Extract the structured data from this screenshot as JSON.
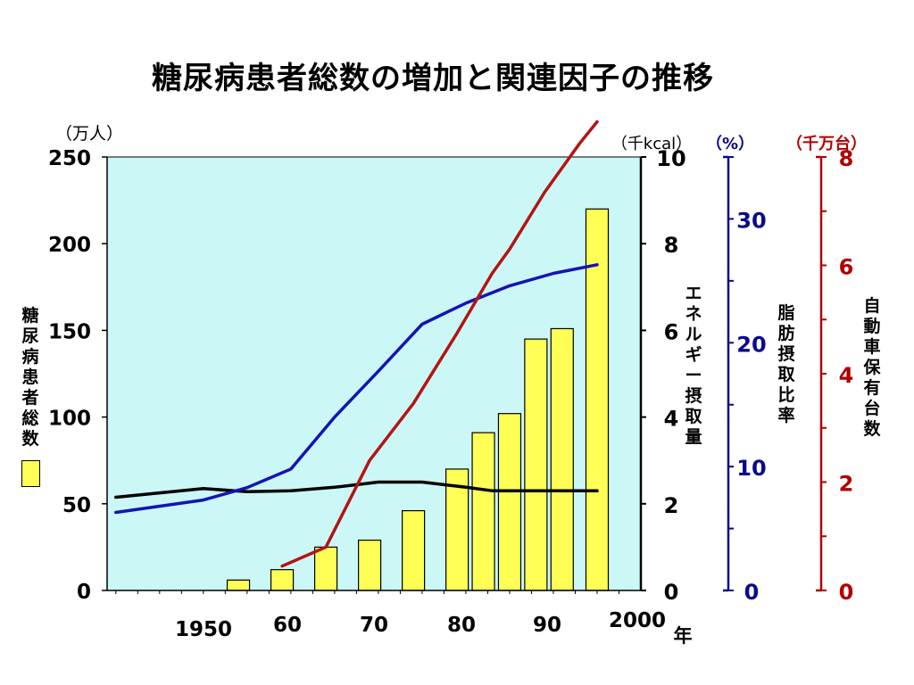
{
  "title": "糖尿病患者総数の増加と関連因子の推移",
  "chart_data": {
    "type": "bar+line",
    "title": "糖尿病患者総数の増加と関連因子の推移",
    "x_unit": "年",
    "x_ticks": [
      "1950",
      "60",
      "70",
      "80",
      "90",
      "2000"
    ],
    "axes": {
      "left": {
        "unit": "（万人）",
        "label": "糖尿病患者総数",
        "range": [
          0,
          250
        ],
        "ticks": [
          "0",
          "50",
          "100",
          "150",
          "200",
          "250"
        ]
      },
      "energy": {
        "unit": "（千kcal）",
        "label": "エネルギー摂取量",
        "range": [
          0,
          10
        ],
        "ticks": [
          "0",
          "2",
          "4",
          "6",
          "8",
          "10"
        ],
        "color": "#000000"
      },
      "fat": {
        "unit": "（%）",
        "label": "脂肪摂取比率",
        "range": [
          0,
          35
        ],
        "ticks": [
          "0",
          "10",
          "20",
          "30"
        ],
        "color": "#0a0a8c"
      },
      "cars": {
        "unit": "（千万台）",
        "label": "自動車保有台数",
        "range": [
          0,
          8
        ],
        "ticks": [
          "0",
          "2",
          "4",
          "6",
          "8"
        ],
        "color": "#b00000"
      }
    },
    "bars": {
      "name": "糖尿病患者総数",
      "color": "#ffff55",
      "x": [
        1955,
        1960,
        1965,
        1970,
        1975,
        1980,
        1983,
        1986,
        1989,
        1992,
        1996
      ],
      "values": [
        6,
        12,
        25,
        29,
        46,
        70,
        91,
        102,
        145,
        151,
        220
      ]
    },
    "lines": [
      {
        "name": "エネルギー摂取量",
        "axis": "energy",
        "color": "#000000",
        "x": [
          1941,
          1951,
          1956,
          1961,
          1966,
          1971,
          1976,
          1981,
          1984,
          1986,
          1991,
          1996
        ],
        "y": [
          2.15,
          2.35,
          2.28,
          2.3,
          2.38,
          2.5,
          2.5,
          2.38,
          2.3,
          2.3,
          2.3,
          2.3
        ]
      },
      {
        "name": "脂肪摂取比率",
        "axis": "fat",
        "color": "#1414b4",
        "x": [
          1941,
          1951,
          1956,
          1961,
          1966,
          1971,
          1976,
          1981,
          1986,
          1991,
          1996
        ],
        "y": [
          6.3,
          7.3,
          8.3,
          9.8,
          14.0,
          17.7,
          21.5,
          23.2,
          24.6,
          25.6,
          26.3
        ]
      },
      {
        "name": "自動車保有台数",
        "axis": "cars",
        "color": "#b41414",
        "x": [
          1960,
          1965,
          1970,
          1975,
          1980,
          1984,
          1986,
          1990,
          1994,
          1996
        ],
        "y": [
          0.45,
          0.8,
          2.4,
          3.45,
          4.75,
          5.85,
          6.3,
          7.35,
          8.25,
          8.65
        ]
      }
    ],
    "grid": false,
    "plot_background": "#ccf7f7"
  }
}
